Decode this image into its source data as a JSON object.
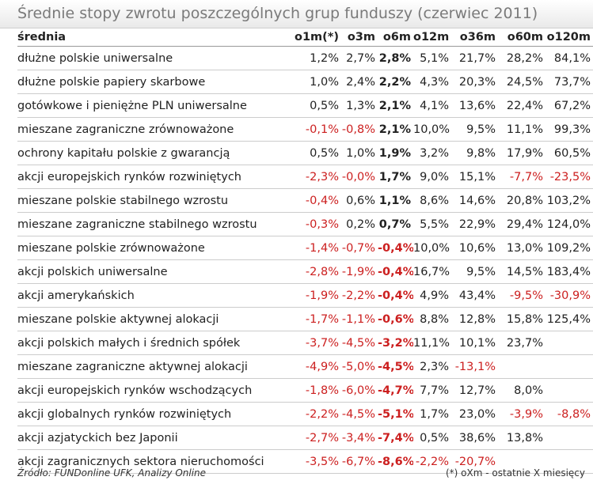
{
  "title": "Średnie stopy zwrotu poszczególnych grup funduszy (czerwiec 2011)",
  "footer": {
    "source": "Źródło: FUNDonline UFK, Analizy Online",
    "note": "(*) oXm - ostatnie X miesięcy"
  },
  "colors": {
    "negative": "#cc1f1f",
    "text": "#222222",
    "title": "#7a7a7a"
  },
  "chart_data": {
    "type": "table",
    "columns": [
      "średnia",
      "o1m(*)",
      "o3m",
      "o6m",
      "o12m",
      "o36m",
      "o60m",
      "o120m"
    ],
    "bold_column": "o6m",
    "rows": [
      {
        "name": "dłużne polskie uniwersalne",
        "values": [
          1.2,
          2.7,
          2.8,
          5.1,
          21.7,
          28.2,
          84.1
        ]
      },
      {
        "name": "dłużne polskie papiery skarbowe",
        "values": [
          1.0,
          2.4,
          2.2,
          4.3,
          20.3,
          24.5,
          73.7
        ]
      },
      {
        "name": "gotówkowe i pieniężne PLN uniwersalne",
        "values": [
          0.5,
          1.3,
          2.1,
          4.1,
          13.6,
          22.4,
          67.2
        ]
      },
      {
        "name": "mieszane zagraniczne zrównoważone",
        "values": [
          -0.1,
          -0.8,
          2.1,
          10.0,
          9.5,
          11.1,
          99.3
        ]
      },
      {
        "name": "ochrony kapitału polskie z gwarancją",
        "values": [
          0.5,
          1.0,
          1.9,
          3.2,
          9.8,
          17.9,
          60.5
        ]
      },
      {
        "name": "akcji europejskich rynków rozwiniętych",
        "values": [
          -2.3,
          "-0.0",
          1.7,
          9.0,
          15.1,
          -7.7,
          -23.5
        ]
      },
      {
        "name": "mieszane polskie stabilnego wzrostu",
        "values": [
          -0.4,
          0.6,
          1.1,
          8.6,
          14.6,
          20.8,
          103.2
        ]
      },
      {
        "name": "mieszane zagraniczne stabilnego wzrostu",
        "values": [
          -0.3,
          0.2,
          0.7,
          5.5,
          22.9,
          29.4,
          124.0
        ]
      },
      {
        "name": "mieszane polskie zrównoważone",
        "values": [
          -1.4,
          -0.7,
          -0.4,
          10.0,
          10.6,
          13.0,
          109.2
        ]
      },
      {
        "name": "akcji polskich uniwersalne",
        "values": [
          -2.8,
          -1.9,
          -0.4,
          16.7,
          9.5,
          14.5,
          183.4
        ]
      },
      {
        "name": "akcji amerykańskich",
        "values": [
          -1.9,
          -2.2,
          -0.4,
          4.9,
          43.4,
          -9.5,
          -30.9
        ]
      },
      {
        "name": "mieszane polskie aktywnej alokacji",
        "values": [
          -1.7,
          -1.1,
          -0.6,
          8.8,
          12.8,
          15.8,
          125.4
        ]
      },
      {
        "name": "akcji polskich małych i średnich spółek",
        "values": [
          -3.7,
          -4.5,
          -3.2,
          11.1,
          10.1,
          23.7,
          null
        ]
      },
      {
        "name": "mieszane zagraniczne aktywnej alokacji",
        "values": [
          -4.9,
          -5.0,
          -4.5,
          2.3,
          -13.1,
          null,
          null
        ]
      },
      {
        "name": "akcji europejskich rynków wschodzących",
        "values": [
          -1.8,
          -6.0,
          -4.7,
          7.7,
          12.7,
          8.0,
          null
        ]
      },
      {
        "name": "akcji globalnych rynków rozwiniętych",
        "values": [
          -2.2,
          -4.5,
          -5.1,
          1.7,
          23.0,
          -3.9,
          -8.8
        ]
      },
      {
        "name": "akcji azjatyckich bez Japonii",
        "values": [
          -2.7,
          -3.4,
          -7.4,
          0.5,
          38.6,
          13.8,
          null
        ]
      },
      {
        "name": "akcji zagranicznych sektora nieruchomości",
        "values": [
          -3.5,
          -6.7,
          -8.6,
          -2.2,
          -20.7,
          null,
          null
        ]
      }
    ]
  }
}
